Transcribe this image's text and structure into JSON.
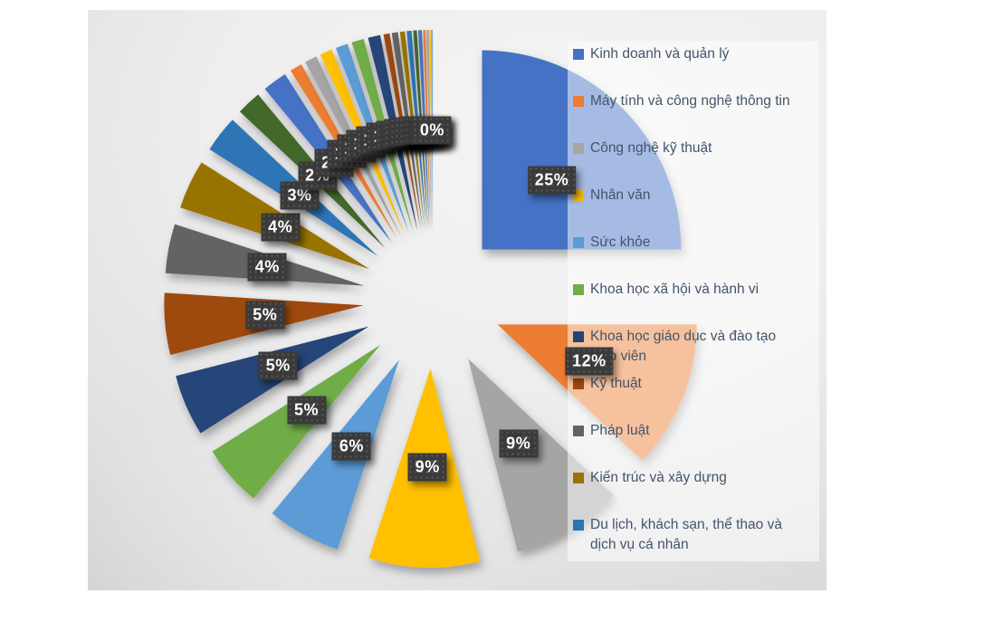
{
  "chart_data": {
    "type": "pie",
    "title": "",
    "exploded": true,
    "legend_position": "right",
    "legend": [
      {
        "label": "Kinh doanh và quản lý",
        "color": "#4472C4"
      },
      {
        "label": "Máy tính và công nghệ thông tin",
        "color": "#ED7D31"
      },
      {
        "label": "Công nghệ kỹ thuật",
        "color": "#A5A5A5"
      },
      {
        "label": "Nhân văn",
        "color": "#FFC000"
      },
      {
        "label": "Sức khỏe",
        "color": "#5B9BD5"
      },
      {
        "label": "Khoa học xã hội và hành vi",
        "color": "#70AD47"
      },
      {
        "label": "Khoa học giáo dục và đào tạo giáo viên",
        "color": "#264478"
      },
      {
        "label": "Kỹ thuật",
        "color": "#9E480E"
      },
      {
        "label": "Pháp luật",
        "color": "#636363"
      },
      {
        "label": "Kiến trúc và xây dựng",
        "color": "#997300"
      },
      {
        "label": "Du lịch, khách sạn, thể thao và dịch vụ cá nhân",
        "color": "#2E75B6"
      }
    ],
    "slices": [
      {
        "name": "Kinh doanh và quản lý",
        "value": 25,
        "label": "25%",
        "color": "#4472C4"
      },
      {
        "name": "Máy tính và công nghệ thông tin",
        "value": 12,
        "label": "12%",
        "color": "#ED7D31"
      },
      {
        "name": "Công nghệ kỹ thuật",
        "value": 9,
        "label": "9%",
        "color": "#A5A5A5"
      },
      {
        "name": "Nhân văn",
        "value": 9,
        "label": "9%",
        "color": "#FFC000"
      },
      {
        "name": "Sức khỏe",
        "value": 6,
        "label": "6%",
        "color": "#5B9BD5"
      },
      {
        "name": "Khoa học xã hội và hành vi",
        "value": 5,
        "label": "5%",
        "color": "#70AD47"
      },
      {
        "name": "Khoa học giáo dục và đào tạo giáo viên",
        "value": 5,
        "label": "5%",
        "color": "#264478"
      },
      {
        "name": "Kỹ thuật",
        "value": 5,
        "label": "5%",
        "color": "#9E480E"
      },
      {
        "name": "Pháp luật",
        "value": 4,
        "label": "4%",
        "color": "#636363"
      },
      {
        "name": "Kiến trúc và xây dựng",
        "value": 4,
        "label": "4%",
        "color": "#997300"
      },
      {
        "name": "Du lịch, khách sạn, thể thao và dịch vụ cá nhân",
        "value": 3,
        "label": "3%",
        "color": "#2E75B6"
      },
      {
        "name": "",
        "value": 2,
        "label": "2%",
        "color": "#43682B"
      },
      {
        "name": "",
        "value": 2,
        "label": "2%",
        "color": "#4472C4"
      },
      {
        "name": "",
        "value": 1,
        "label": "1%",
        "color": "#ED7D31"
      },
      {
        "name": "",
        "value": 1,
        "label": "1%",
        "color": "#A5A5A5"
      },
      {
        "name": "",
        "value": 1,
        "label": "1%",
        "color": "#FFC000"
      },
      {
        "name": "",
        "value": 1,
        "label": "1%",
        "color": "#5B9BD5"
      },
      {
        "name": "",
        "value": 1,
        "label": "1%",
        "color": "#70AD47"
      },
      {
        "name": "",
        "value": 1,
        "label": "1%",
        "color": "#264478"
      },
      {
        "name": "",
        "value": 0.5,
        "label": "1%",
        "color": "#9E480E"
      },
      {
        "name": "",
        "value": 0.5,
        "label": "1%",
        "color": "#636363"
      },
      {
        "name": "",
        "value": 0.4,
        "label": "0%",
        "color": "#997300"
      },
      {
        "name": "",
        "value": 0.4,
        "label": "0%",
        "color": "#2E75B6"
      },
      {
        "name": "",
        "value": 0.3,
        "label": "0%",
        "color": "#43682B"
      },
      {
        "name": "",
        "value": 0.3,
        "label": "0%",
        "color": "#4472C4"
      },
      {
        "name": "",
        "value": 0.2,
        "label": "0%",
        "color": "#ED7D31"
      },
      {
        "name": "",
        "value": 0.2,
        "label": "0%",
        "color": "#A5A5A5"
      },
      {
        "name": "",
        "value": 0.1,
        "label": "0%",
        "color": "#FFC000"
      },
      {
        "name": "",
        "value": 0.1,
        "label": "0%",
        "color": "#5B9BD5"
      }
    ],
    "data_label_bg": "#3A3A3A",
    "data_label_text_color": "#FFFFFF",
    "legend_text_color": "#44546A",
    "legend_panel_color": "rgba(255,255,255,0.52)"
  }
}
